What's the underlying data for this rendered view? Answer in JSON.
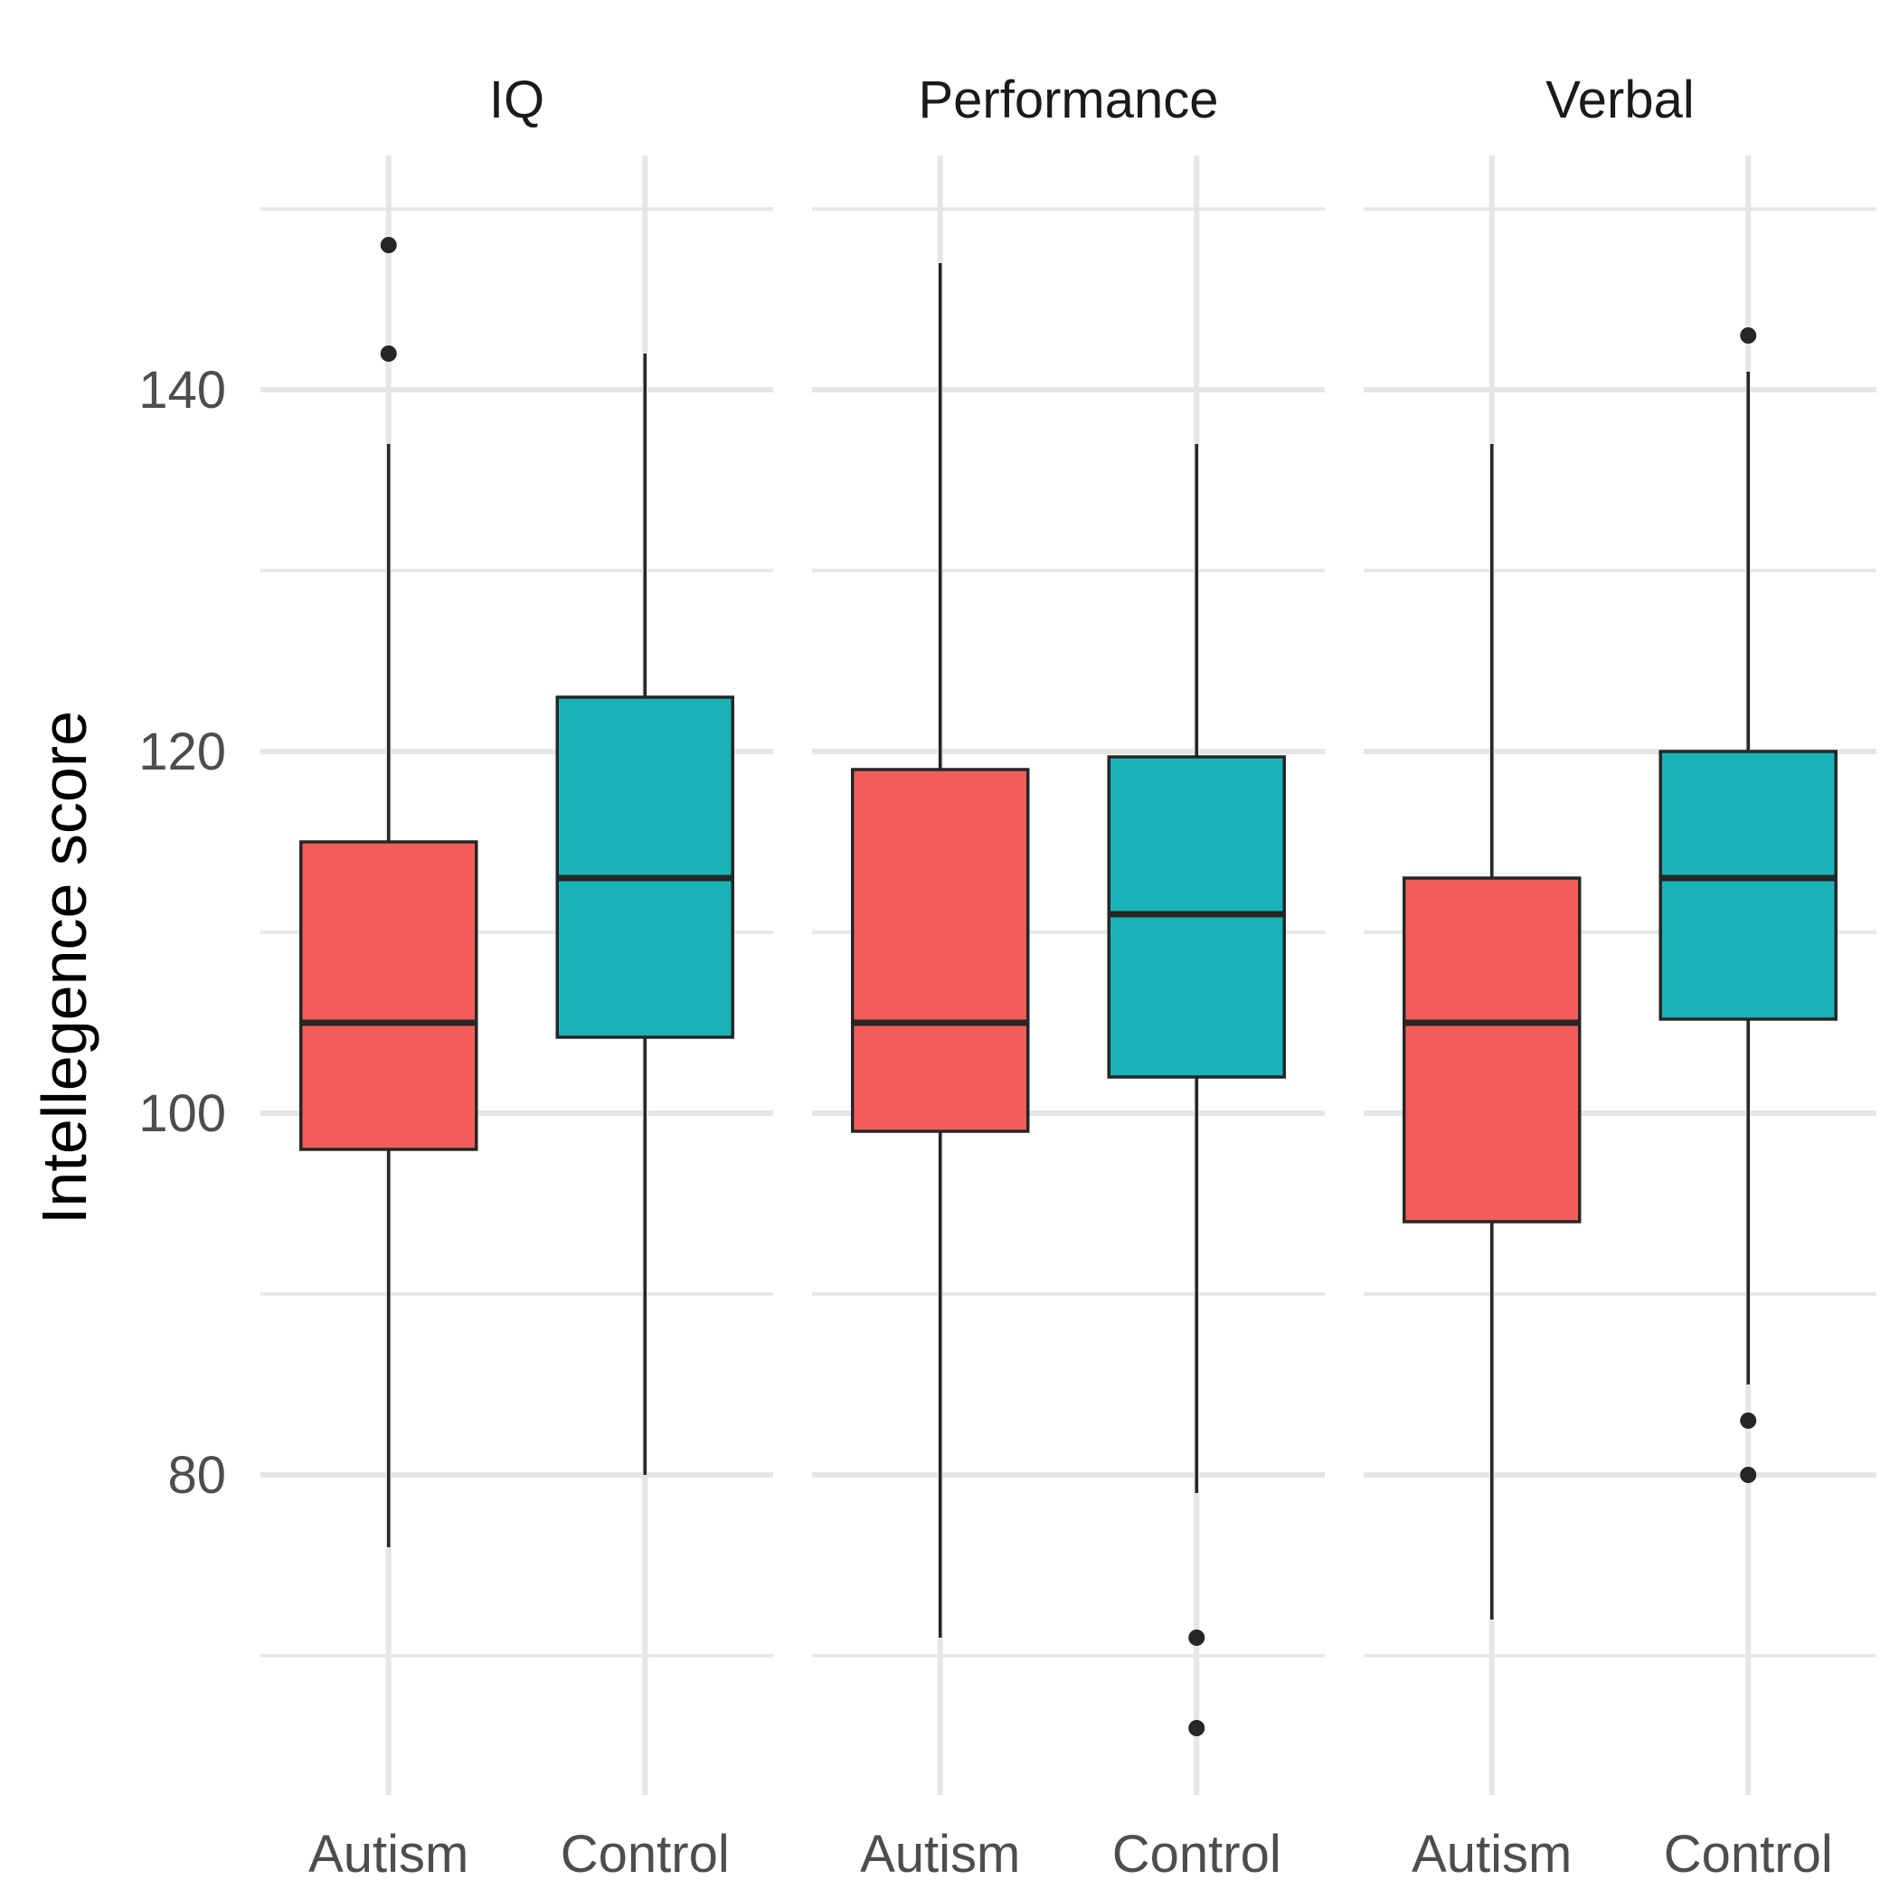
{
  "chart_data": {
    "type": "boxplot",
    "title": "",
    "ylabel": "Intellegence score",
    "xlabel": "",
    "ylim": [
      62,
      152
    ],
    "yticks": [
      80,
      100,
      120,
      140
    ],
    "categories": [
      "Autism",
      "Control"
    ],
    "colors": {
      "Autism": "#F35E5A",
      "Control": "#19B3B7"
    },
    "grid": true,
    "legend": "none",
    "facets": [
      {
        "name": "IQ",
        "boxes": [
          {
            "category": "Autism",
            "lower": 76,
            "q1": 98,
            "median": 105,
            "q3": 115,
            "upper": 137,
            "outliers": [
              142,
              148
            ]
          },
          {
            "category": "Control",
            "lower": 80,
            "q1": 104.2,
            "median": 113,
            "q3": 123,
            "upper": 142,
            "outliers": []
          }
        ]
      },
      {
        "name": "Performance",
        "boxes": [
          {
            "category": "Autism",
            "lower": 71,
            "q1": 99,
            "median": 105,
            "q3": 119,
            "upper": 147,
            "outliers": []
          },
          {
            "category": "Control",
            "lower": 79,
            "q1": 102,
            "median": 111,
            "q3": 119.7,
            "upper": 137,
            "outliers": [
              66,
              71
            ]
          }
        ]
      },
      {
        "name": "Verbal",
        "boxes": [
          {
            "category": "Autism",
            "lower": 72,
            "q1": 94,
            "median": 105,
            "q3": 113,
            "upper": 137,
            "outliers": []
          },
          {
            "category": "Control",
            "lower": 85,
            "q1": 105.2,
            "median": 113,
            "q3": 120,
            "upper": 141,
            "outliers": [
              80,
              83,
              143
            ]
          }
        ]
      }
    ]
  }
}
